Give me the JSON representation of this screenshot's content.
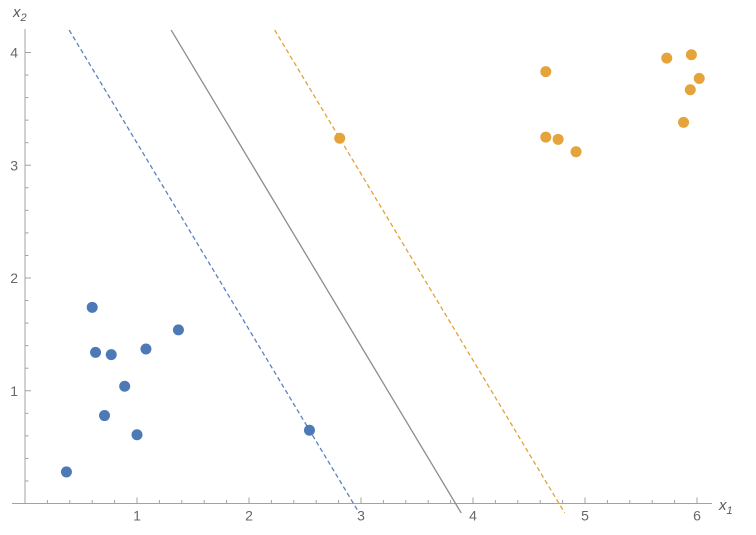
{
  "figure": {
    "background": "#ffffff",
    "axes": {
      "line_color": "#a3a3a3",
      "tick_color": "#a3a3a3",
      "tick_label_color": "#686868",
      "x": {
        "label_base": "x",
        "label_sub": "1",
        "major_tick_labels": [
          "1",
          "2",
          "3",
          "4",
          "5",
          "6"
        ],
        "major_tick_values": [
          1,
          2,
          3,
          4,
          5,
          6
        ],
        "minor_tick_step": 0.2
      },
      "y": {
        "label_base": "x",
        "label_sub": "2",
        "major_tick_labels": [
          "1",
          "2",
          "3",
          "4"
        ],
        "major_tick_values": [
          1,
          2,
          3,
          4
        ],
        "minor_tick_step": 0.2
      }
    }
  },
  "chart_data": {
    "type": "scatter",
    "title": "",
    "xlabel": "x_1",
    "ylabel": "x_2",
    "xlim": [
      -0.12,
      6.13
    ],
    "ylim": [
      -0.09,
      4.2
    ],
    "grid": false,
    "legend": false,
    "series": [
      {
        "name": "negative-class-points",
        "color": "#4e79b7",
        "marker": "circle",
        "marker_radius_px": 5.5,
        "points": [
          [
            0.6,
            1.74
          ],
          [
            1.37,
            1.54
          ],
          [
            0.63,
            1.34
          ],
          [
            0.77,
            1.32
          ],
          [
            1.08,
            1.37
          ],
          [
            0.89,
            1.04
          ],
          [
            0.71,
            0.78
          ],
          [
            1.0,
            0.61
          ],
          [
            0.37,
            0.28
          ],
          [
            2.54,
            0.65
          ]
        ]
      },
      {
        "name": "positive-class-points",
        "color": "#e5a33c",
        "marker": "circle",
        "marker_radius_px": 5.5,
        "points": [
          [
            2.81,
            3.24
          ],
          [
            4.65,
            3.83
          ],
          [
            4.65,
            3.25
          ],
          [
            4.76,
            3.23
          ],
          [
            4.92,
            3.12
          ],
          [
            5.73,
            3.95
          ],
          [
            5.88,
            3.38
          ],
          [
            5.94,
            3.67
          ],
          [
            5.95,
            3.98
          ],
          [
            6.02,
            3.77
          ]
        ]
      }
    ],
    "lines": [
      {
        "name": "lower-margin-line",
        "color": "#5b82bd",
        "style": "dashed",
        "slope": -1.654,
        "x_intercept": 2.933
      },
      {
        "name": "decision-boundary-line",
        "color": "#8c8c8c",
        "style": "solid",
        "slope": -1.654,
        "x_intercept": 3.844
      },
      {
        "name": "upper-margin-line",
        "color": "#e2a23b",
        "style": "dashed",
        "slope": -1.654,
        "x_intercept": 4.768
      }
    ],
    "support_vectors": [
      {
        "class": "negative",
        "point": [
          2.54,
          0.65
        ]
      },
      {
        "class": "positive",
        "point": [
          2.81,
          3.24
        ]
      }
    ]
  }
}
